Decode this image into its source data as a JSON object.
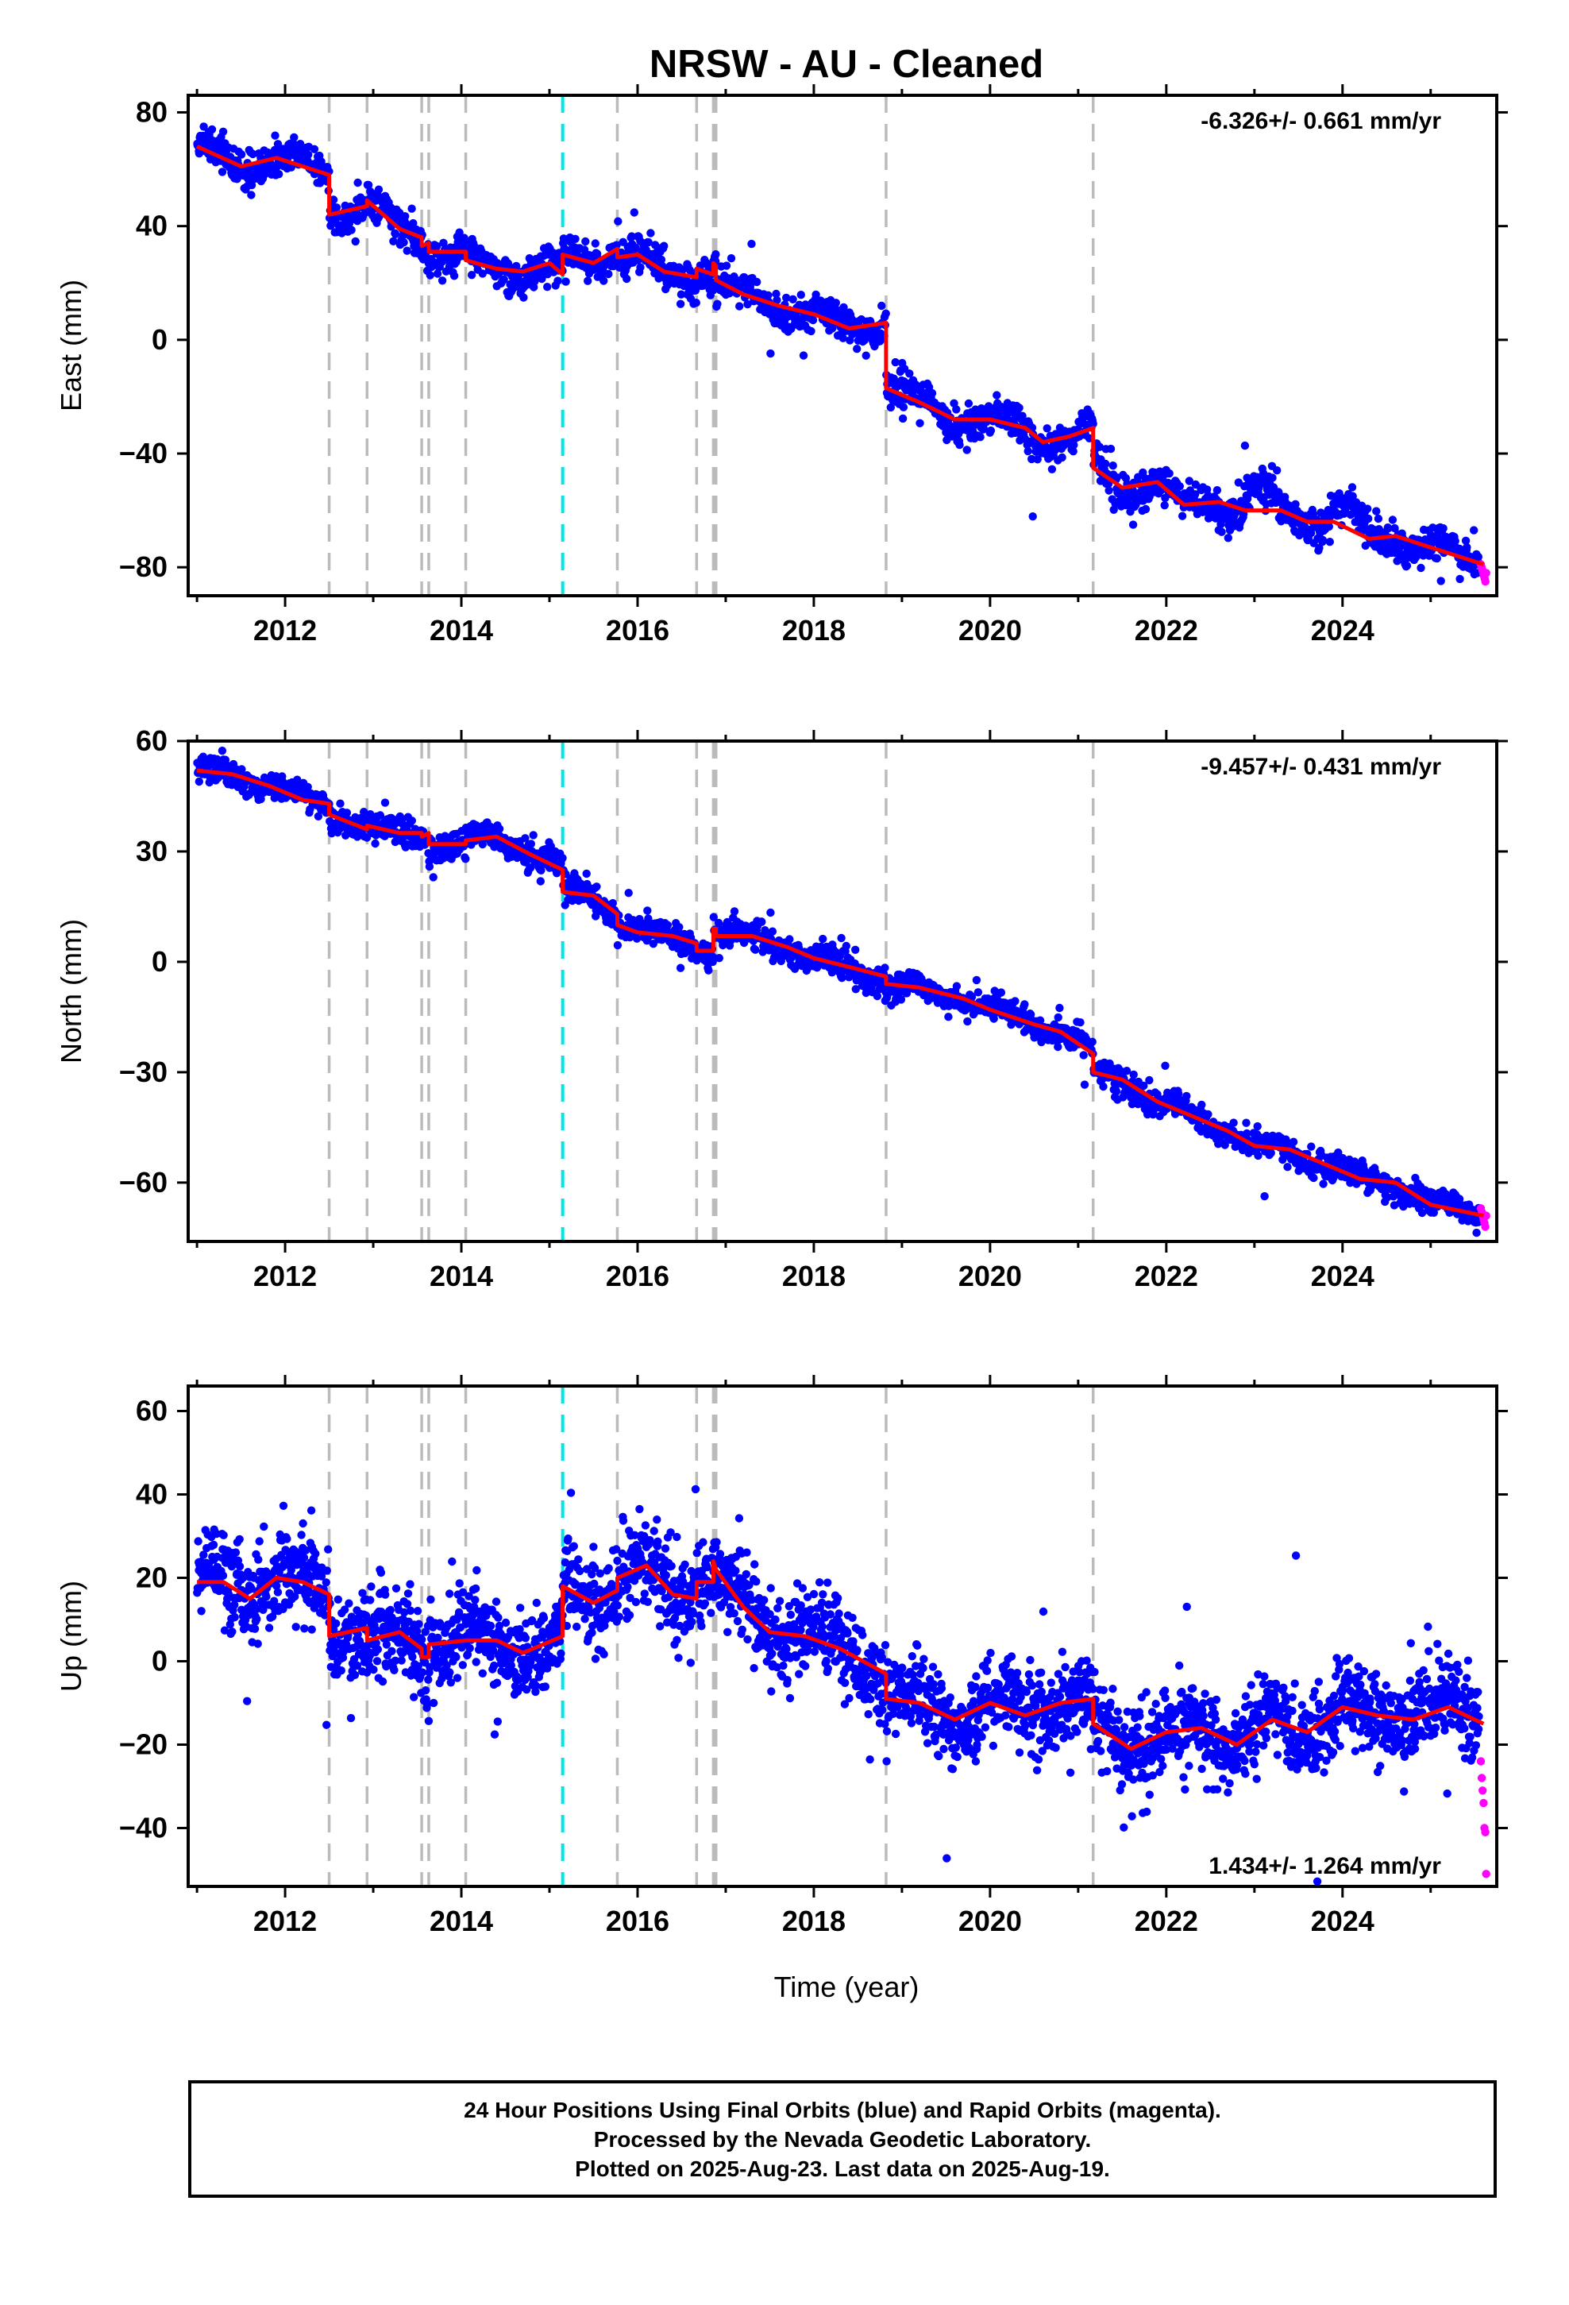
{
  "title": "NRSW  - AU - Cleaned",
  "xlabel": "Time (year)",
  "footer": [
    "24 Hour Positions Using Final Orbits (blue) and Rapid Orbits (magenta).",
    "Processed by the Nevada Geodetic Laboratory.",
    "Plotted on 2025-Aug-23. Last data on 2025-Aug-19."
  ],
  "colors": {
    "final_orbits": "#0000ff",
    "rapid_orbits": "#ff00ff",
    "model": "#ff0000",
    "offset_lines": "#bbbbbb",
    "antenna_change_line": "#00e5e5"
  },
  "chart_data": [
    {
      "type": "scatter",
      "panel": "East",
      "ylabel": "East (mm)",
      "rate_label": "-6.326+/- 0.661 mm/yr",
      "xlim": [
        2010.9,
        2025.75
      ],
      "ylim": [
        -90,
        86
      ],
      "yticks": [
        80,
        40,
        0,
        -40,
        -80
      ],
      "xticks": [
        2012,
        2014,
        2016,
        2018,
        2020,
        2022,
        2024
      ],
      "offset_lines": [
        2012.5,
        2012.93,
        2013.55,
        2013.63,
        2014.05,
        2015.77,
        2016.67,
        2016.86,
        2016.89,
        2018.82,
        2021.17
      ],
      "antenna_lines": [
        2015.15
      ],
      "series": [
        {
          "name": "Final Orbits",
          "model_x": [
            2011.0,
            2011.5,
            2011.9,
            2012.3,
            2012.5,
            2012.5,
            2012.93,
            2012.93,
            2013.3,
            2013.55,
            2013.55,
            2013.63,
            2013.63,
            2014.05,
            2014.05,
            2014.4,
            2014.7,
            2015.0,
            2015.15,
            2015.15,
            2015.5,
            2015.77,
            2015.77,
            2016.0,
            2016.3,
            2016.67,
            2016.67,
            2016.86,
            2016.86,
            2016.89,
            2016.89,
            2017.2,
            2017.6,
            2018.0,
            2018.4,
            2018.82,
            2018.82,
            2019.2,
            2019.6,
            2020.0,
            2020.4,
            2020.6,
            2020.9,
            2021.17,
            2021.17,
            2021.5,
            2021.9,
            2022.2,
            2022.6,
            2022.9,
            2023.3,
            2023.6,
            2023.9,
            2024.3,
            2024.6,
            2024.9,
            2025.3,
            2025.6
          ],
          "model_y": [
            68,
            61,
            64,
            60,
            58,
            44,
            47,
            49,
            39,
            36,
            33,
            34,
            31,
            31,
            28,
            25,
            24,
            27,
            23,
            30,
            27,
            32,
            29,
            30,
            24,
            22,
            25,
            23,
            27,
            26,
            21,
            16,
            12,
            9,
            4,
            6,
            -17,
            -22,
            -28,
            -28,
            -31,
            -36,
            -34,
            -31,
            -45,
            -52,
            -50,
            -58,
            -57,
            -60,
            -60,
            -64,
            -64,
            -70,
            -69,
            -72,
            -76,
            -79
          ],
          "jumps": [
            [
              2012.5,
              -14
            ],
            [
              2012.93,
              2
            ],
            [
              2013.55,
              -3
            ],
            [
              2013.63,
              -3
            ],
            [
              2014.05,
              -3
            ],
            [
              2015.15,
              7
            ],
            [
              2015.77,
              -3
            ],
            [
              2016.67,
              3
            ],
            [
              2016.86,
              4
            ],
            [
              2016.89,
              -5
            ],
            [
              2018.82,
              -23
            ],
            [
              2021.17,
              -14
            ]
          ],
          "seasonal_amp": 2.8,
          "scatter_sd": 3.0,
          "extra_annual": {
            "x0": 2022.9,
            "x1": 2024.7,
            "amp": 7
          },
          "n_points": 2400
        },
        {
          "name": "Rapid Orbits",
          "x_range": [
            2025.57,
            2025.63
          ],
          "y": [
            -79,
            -80,
            -81,
            -82,
            -83,
            -84,
            -85,
            -82
          ]
        }
      ]
    },
    {
      "type": "scatter",
      "panel": "North",
      "ylabel": "North (mm)",
      "rate_label": "-9.457+/- 0.431 mm/yr",
      "xlim": [
        2010.9,
        2025.75
      ],
      "ylim": [
        -76,
        60
      ],
      "yticks": [
        60,
        30,
        0,
        -30,
        -60
      ],
      "xticks": [
        2012,
        2014,
        2016,
        2018,
        2020,
        2022,
        2024
      ],
      "offset_lines": [
        2012.5,
        2012.93,
        2013.55,
        2013.63,
        2014.05,
        2015.77,
        2016.67,
        2016.86,
        2016.89,
        2018.82,
        2021.17
      ],
      "antenna_lines": [
        2015.15
      ],
      "series": [
        {
          "name": "Final Orbits",
          "model_x": [
            2011.0,
            2011.4,
            2011.8,
            2012.2,
            2012.5,
            2012.5,
            2012.93,
            2012.93,
            2013.3,
            2013.55,
            2013.55,
            2013.63,
            2013.63,
            2014.05,
            2014.05,
            2014.4,
            2014.8,
            2015.15,
            2015.15,
            2015.5,
            2015.77,
            2015.77,
            2016.0,
            2016.4,
            2016.67,
            2016.67,
            2016.86,
            2016.86,
            2016.89,
            2016.89,
            2017.3,
            2017.7,
            2018.0,
            2018.5,
            2018.82,
            2018.82,
            2019.2,
            2019.7,
            2020.0,
            2020.5,
            2020.8,
            2021.17,
            2021.17,
            2021.5,
            2021.9,
            2022.3,
            2022.7,
            2023.0,
            2023.4,
            2023.8,
            2024.2,
            2024.6,
            2025.0,
            2025.6
          ],
          "model_y": [
            52,
            51,
            48,
            44,
            43,
            40,
            36,
            37,
            35,
            35,
            34,
            35,
            32,
            32,
            33,
            34,
            29,
            25,
            19,
            18,
            13,
            10,
            8,
            7,
            5,
            3,
            3,
            9,
            9,
            7,
            7,
            4,
            1,
            -2,
            -4,
            -6,
            -7,
            -10,
            -13,
            -17,
            -19,
            -25,
            -30,
            -32,
            -38,
            -42,
            -46,
            -50,
            -51,
            -55,
            -59,
            -60,
            -66,
            -69
          ],
          "jumps": [
            [
              2012.5,
              -3
            ],
            [
              2012.93,
              1
            ],
            [
              2013.55,
              -1
            ],
            [
              2013.63,
              -3
            ],
            [
              2014.05,
              1
            ],
            [
              2015.15,
              -6
            ],
            [
              2015.77,
              -3
            ],
            [
              2016.67,
              -2
            ],
            [
              2016.86,
              6
            ],
            [
              2016.89,
              -1
            ],
            [
              2018.82,
              -2
            ],
            [
              2021.17,
              -5
            ]
          ],
          "seasonal_amp": 1.5,
          "scatter_sd": 1.8,
          "n_points": 2400
        },
        {
          "name": "Rapid Orbits",
          "x_range": [
            2025.57,
            2025.63
          ],
          "y": [
            -67,
            -68,
            -69,
            -70,
            -71,
            -72,
            -69
          ]
        }
      ]
    },
    {
      "type": "scatter",
      "panel": "Up",
      "ylabel": "Up (mm)",
      "rate_label": "1.434+/- 1.264 mm/yr",
      "xlim": [
        2010.9,
        2025.75
      ],
      "ylim": [
        -54,
        66
      ],
      "yticks": [
        60,
        40,
        20,
        0,
        -20,
        -40
      ],
      "xticks": [
        2012,
        2014,
        2016,
        2018,
        2020,
        2022,
        2024
      ],
      "offset_lines": [
        2012.5,
        2012.93,
        2013.55,
        2013.63,
        2014.05,
        2015.77,
        2016.67,
        2016.86,
        2016.89,
        2018.82,
        2021.17
      ],
      "antenna_lines": [
        2015.15
      ],
      "series": [
        {
          "name": "Final Orbits",
          "model_x": [
            2011.0,
            2011.3,
            2011.6,
            2011.9,
            2012.2,
            2012.5,
            2012.5,
            2012.93,
            2012.93,
            2013.3,
            2013.55,
            2013.55,
            2013.63,
            2013.63,
            2014.05,
            2014.05,
            2014.4,
            2014.7,
            2015.15,
            2015.15,
            2015.5,
            2015.77,
            2015.77,
            2016.1,
            2016.4,
            2016.67,
            2016.67,
            2016.86,
            2016.86,
            2016.89,
            2016.89,
            2017.2,
            2017.5,
            2017.9,
            2018.3,
            2018.82,
            2018.82,
            2019.2,
            2019.6,
            2020.0,
            2020.4,
            2020.8,
            2021.17,
            2021.17,
            2021.6,
            2022.0,
            2022.4,
            2022.8,
            2023.2,
            2023.6,
            2024.0,
            2024.4,
            2024.8,
            2025.2,
            2025.6
          ],
          "model_y": [
            19,
            19,
            15,
            20,
            19,
            16,
            6,
            8,
            5,
            7,
            3,
            1,
            1,
            4,
            5,
            5,
            5,
            2,
            6,
            18,
            14,
            17,
            20,
            23,
            16,
            15,
            19,
            19,
            24,
            22,
            22,
            13,
            7,
            6,
            3,
            -3,
            -9,
            -10,
            -14,
            -10,
            -13,
            -10,
            -9,
            -15,
            -21,
            -17,
            -16,
            -20,
            -14,
            -17,
            -11,
            -13,
            -14,
            -11,
            -15
          ],
          "jumps": [
            [
              2012.5,
              -10
            ],
            [
              2012.93,
              -3
            ],
            [
              2013.55,
              -2
            ],
            [
              2013.63,
              3
            ],
            [
              2014.05,
              0
            ],
            [
              2015.15,
              12
            ],
            [
              2015.77,
              3
            ],
            [
              2016.67,
              4
            ],
            [
              2016.86,
              5
            ],
            [
              2016.89,
              0
            ],
            [
              2018.82,
              -6
            ],
            [
              2021.17,
              -6
            ]
          ],
          "seasonal_amp": 2.5,
          "scatter_sd": 5.0,
          "n_points": 3000
        },
        {
          "name": "Rapid Orbits",
          "x_range": [
            2025.57,
            2025.63
          ],
          "y": [
            -24,
            -28,
            -31,
            -34,
            -40,
            -41,
            -51
          ]
        }
      ]
    }
  ]
}
